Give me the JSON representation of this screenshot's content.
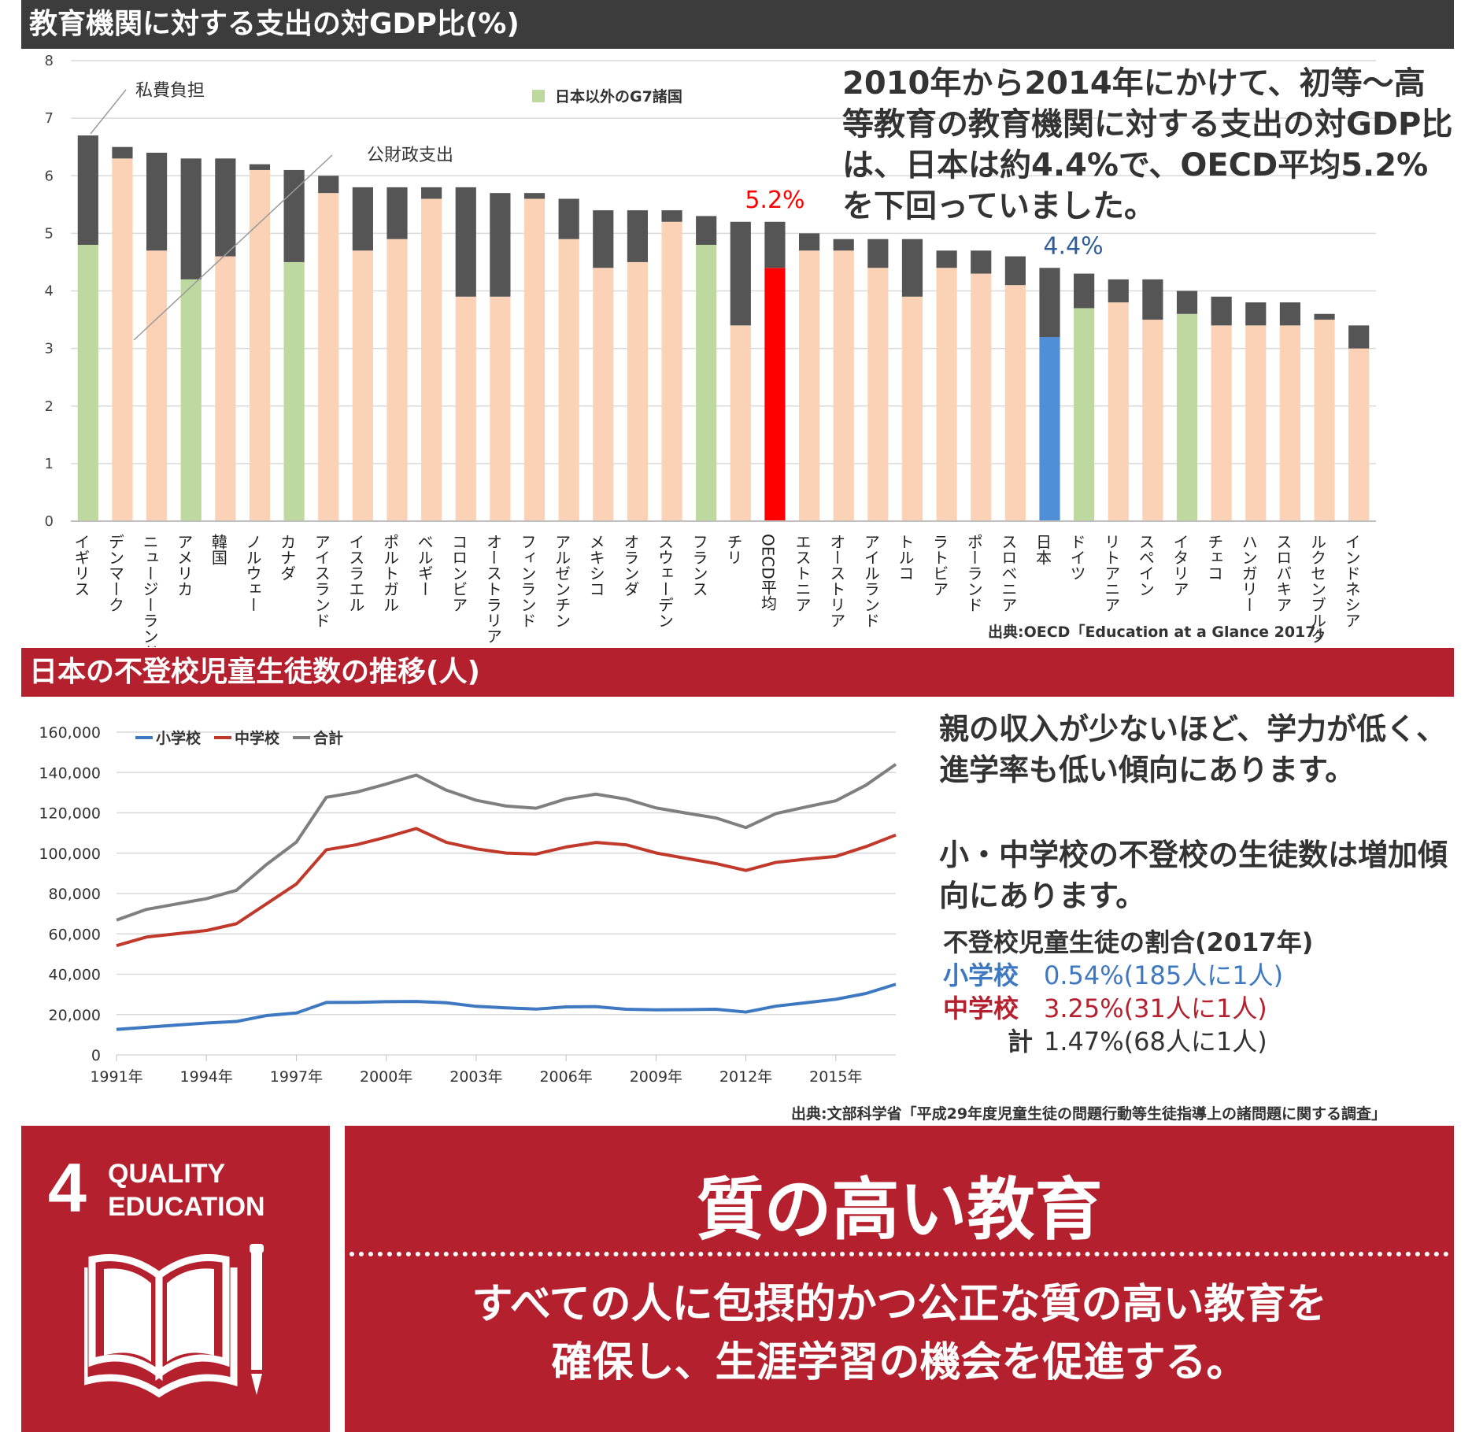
{
  "section1": {
    "title": "教育機関に対する支出の対GDP比(%)",
    "note": "2010年から2014年にかけて、初等～高等教育の教育機関に対する支出の対GDP比は、日本は約4.4%で、OECD平均5.2%を下回っていました。",
    "source": "出典:OECD「Education at a Glance 2017」"
  },
  "section2": {
    "title": "日本の不登校児童生徒数の推移(人)",
    "note1": "親の収入が少ないほど、学力が低く、進学率も低い傾向にあります。",
    "note2": "小・中学校の不登校の生徒数は増加傾向にあります。",
    "ratio_title": "不登校児童生徒の割合(2017年)",
    "ratios": [
      {
        "label": "小学校",
        "value": "0.54%(185人に1人)",
        "color": "#3d78c0"
      },
      {
        "label": "中学校",
        "value": "3.25%(31人に1人)",
        "color": "#b5202e"
      },
      {
        "label": "計",
        "value": "1.47%(68人に1人)",
        "color": "#333333"
      }
    ],
    "source": "出典:文部科学省「平成29年度児童生徒の問題行動等生徒指導上の諸問題に関する調査」"
  },
  "sdg": {
    "number": "4",
    "line1": "QUALITY",
    "line2": "EDUCATION",
    "icon": "open-book-pencil-icon",
    "goal_title": "質の高い教育",
    "goal_line1": "すべての人に包摂的かつ公正な質の高い教育を",
    "goal_line2": "確保し、生涯学習の機会を促進する。"
  },
  "chart_data": [
    {
      "type": "bar",
      "stacked": true,
      "ylim": [
        0,
        8
      ],
      "yticks": [
        0,
        1,
        2,
        3,
        4,
        5,
        6,
        7,
        8
      ],
      "grid": true,
      "categories": [
        "イギリス",
        "デンマーク",
        "ニュージーランド",
        "アメリカ",
        "韓国",
        "ノルウェー",
        "カナダ",
        "アイスランド",
        "イスラエル",
        "ポルトガル",
        "ベルギー",
        "コロンビア",
        "オーストラリア",
        "フィンランド",
        "アルゼンチン",
        "メキシコ",
        "オランダ",
        "スウェーデン",
        "フランス",
        "チリ",
        "OECD平均",
        "エストニア",
        "オーストリア",
        "アイルランド",
        "トルコ",
        "ラトビア",
        "ポーランド",
        "スロベニア",
        "日本",
        "ドイツ",
        "リトアニア",
        "スペイン",
        "イタリア",
        "チェコ",
        "ハンガリー",
        "スロバキア",
        "ルクセンブルク",
        "インドネシア"
      ],
      "series": [
        {
          "name": "公財政支出",
          "values": [
            4.8,
            6.3,
            4.7,
            4.2,
            4.6,
            6.1,
            4.5,
            5.7,
            4.7,
            4.9,
            5.6,
            3.9,
            3.9,
            5.6,
            4.9,
            4.4,
            4.5,
            5.2,
            4.8,
            3.4,
            4.4,
            4.7,
            4.7,
            4.4,
            3.9,
            4.4,
            4.3,
            4.1,
            3.2,
            3.7,
            3.8,
            3.5,
            3.6,
            3.4,
            3.4,
            3.4,
            3.5,
            3.0
          ]
        },
        {
          "name": "私費負担",
          "values": [
            1.9,
            0.2,
            1.7,
            2.1,
            1.7,
            0.1,
            1.6,
            0.3,
            1.1,
            0.9,
            0.2,
            1.9,
            1.8,
            0.1,
            0.7,
            1.0,
            0.9,
            0.2,
            0.5,
            1.8,
            0.8,
            0.3,
            0.2,
            0.5,
            1.0,
            0.3,
            0.4,
            0.5,
            1.2,
            0.6,
            0.4,
            0.7,
            0.4,
            0.5,
            0.4,
            0.4,
            0.1,
            0.4
          ]
        }
      ],
      "g7_other": [
        "イギリス",
        "アメリカ",
        "カナダ",
        "フランス",
        "ドイツ",
        "イタリア"
      ],
      "highlight": {
        "OECD平均": "5.2%",
        "日本": "4.4%"
      },
      "legend": "日本以外のG7諸国",
      "colors": {
        "public": "#fbd2b6",
        "private": "#555555",
        "g7": "#bdd99f",
        "oecd": "#ff0000",
        "japan": "#4f8fd8",
        "oecd_label": "#ff0000",
        "japan_label": "#2f5d9a"
      }
    },
    {
      "type": "line",
      "ylim": [
        0,
        160000
      ],
      "yticks": [
        "0",
        "20,000",
        "40,000",
        "60,000",
        "80,000",
        "100,000",
        "120,000",
        "140,000",
        "160,000"
      ],
      "xticks": [
        "1991年",
        "1994年",
        "1997年",
        "2000年",
        "2003年",
        "2006年",
        "2009年",
        "2012年",
        "2015年"
      ],
      "x": [
        1991,
        1992,
        1993,
        1994,
        1995,
        1996,
        1997,
        1998,
        1999,
        2000,
        2001,
        2002,
        2003,
        2004,
        2005,
        2006,
        2007,
        2008,
        2009,
        2010,
        2011,
        2012,
        2013,
        2014,
        2015,
        2016,
        2017
      ],
      "series": [
        {
          "name": "小学校",
          "color": "#3d78c0",
          "values": [
            12645,
            13710,
            14769,
            15786,
            16569,
            19498,
            20765,
            26017,
            26047,
            26373,
            26511,
            25869,
            24077,
            23318,
            22709,
            23825,
            23927,
            22652,
            22327,
            22463,
            22622,
            21243,
            24175,
            25864,
            27583,
            30448,
            35032
          ]
        },
        {
          "name": "中学校",
          "color": "#c0392b",
          "values": [
            54172,
            58421,
            60039,
            61663,
            65022,
            74853,
            84701,
            101675,
            104180,
            107913,
            112211,
            105383,
            102149,
            100040,
            99578,
            103069,
            105328,
            104153,
            100105,
            97428,
            94836,
            91446,
            95442,
            97033,
            98408,
            103235,
            108999
          ]
        },
        {
          "name": "合計",
          "color": "#7f7f7f",
          "values": [
            66817,
            72131,
            74808,
            77449,
            81591,
            94351,
            105466,
            127692,
            130227,
            134286,
            138722,
            131252,
            126226,
            123358,
            122287,
            126894,
            129255,
            126805,
            122432,
            119891,
            117458,
            112689,
            119617,
            122897,
            125991,
            133683,
            144031
          ]
        }
      ],
      "legend": "top-left"
    }
  ]
}
